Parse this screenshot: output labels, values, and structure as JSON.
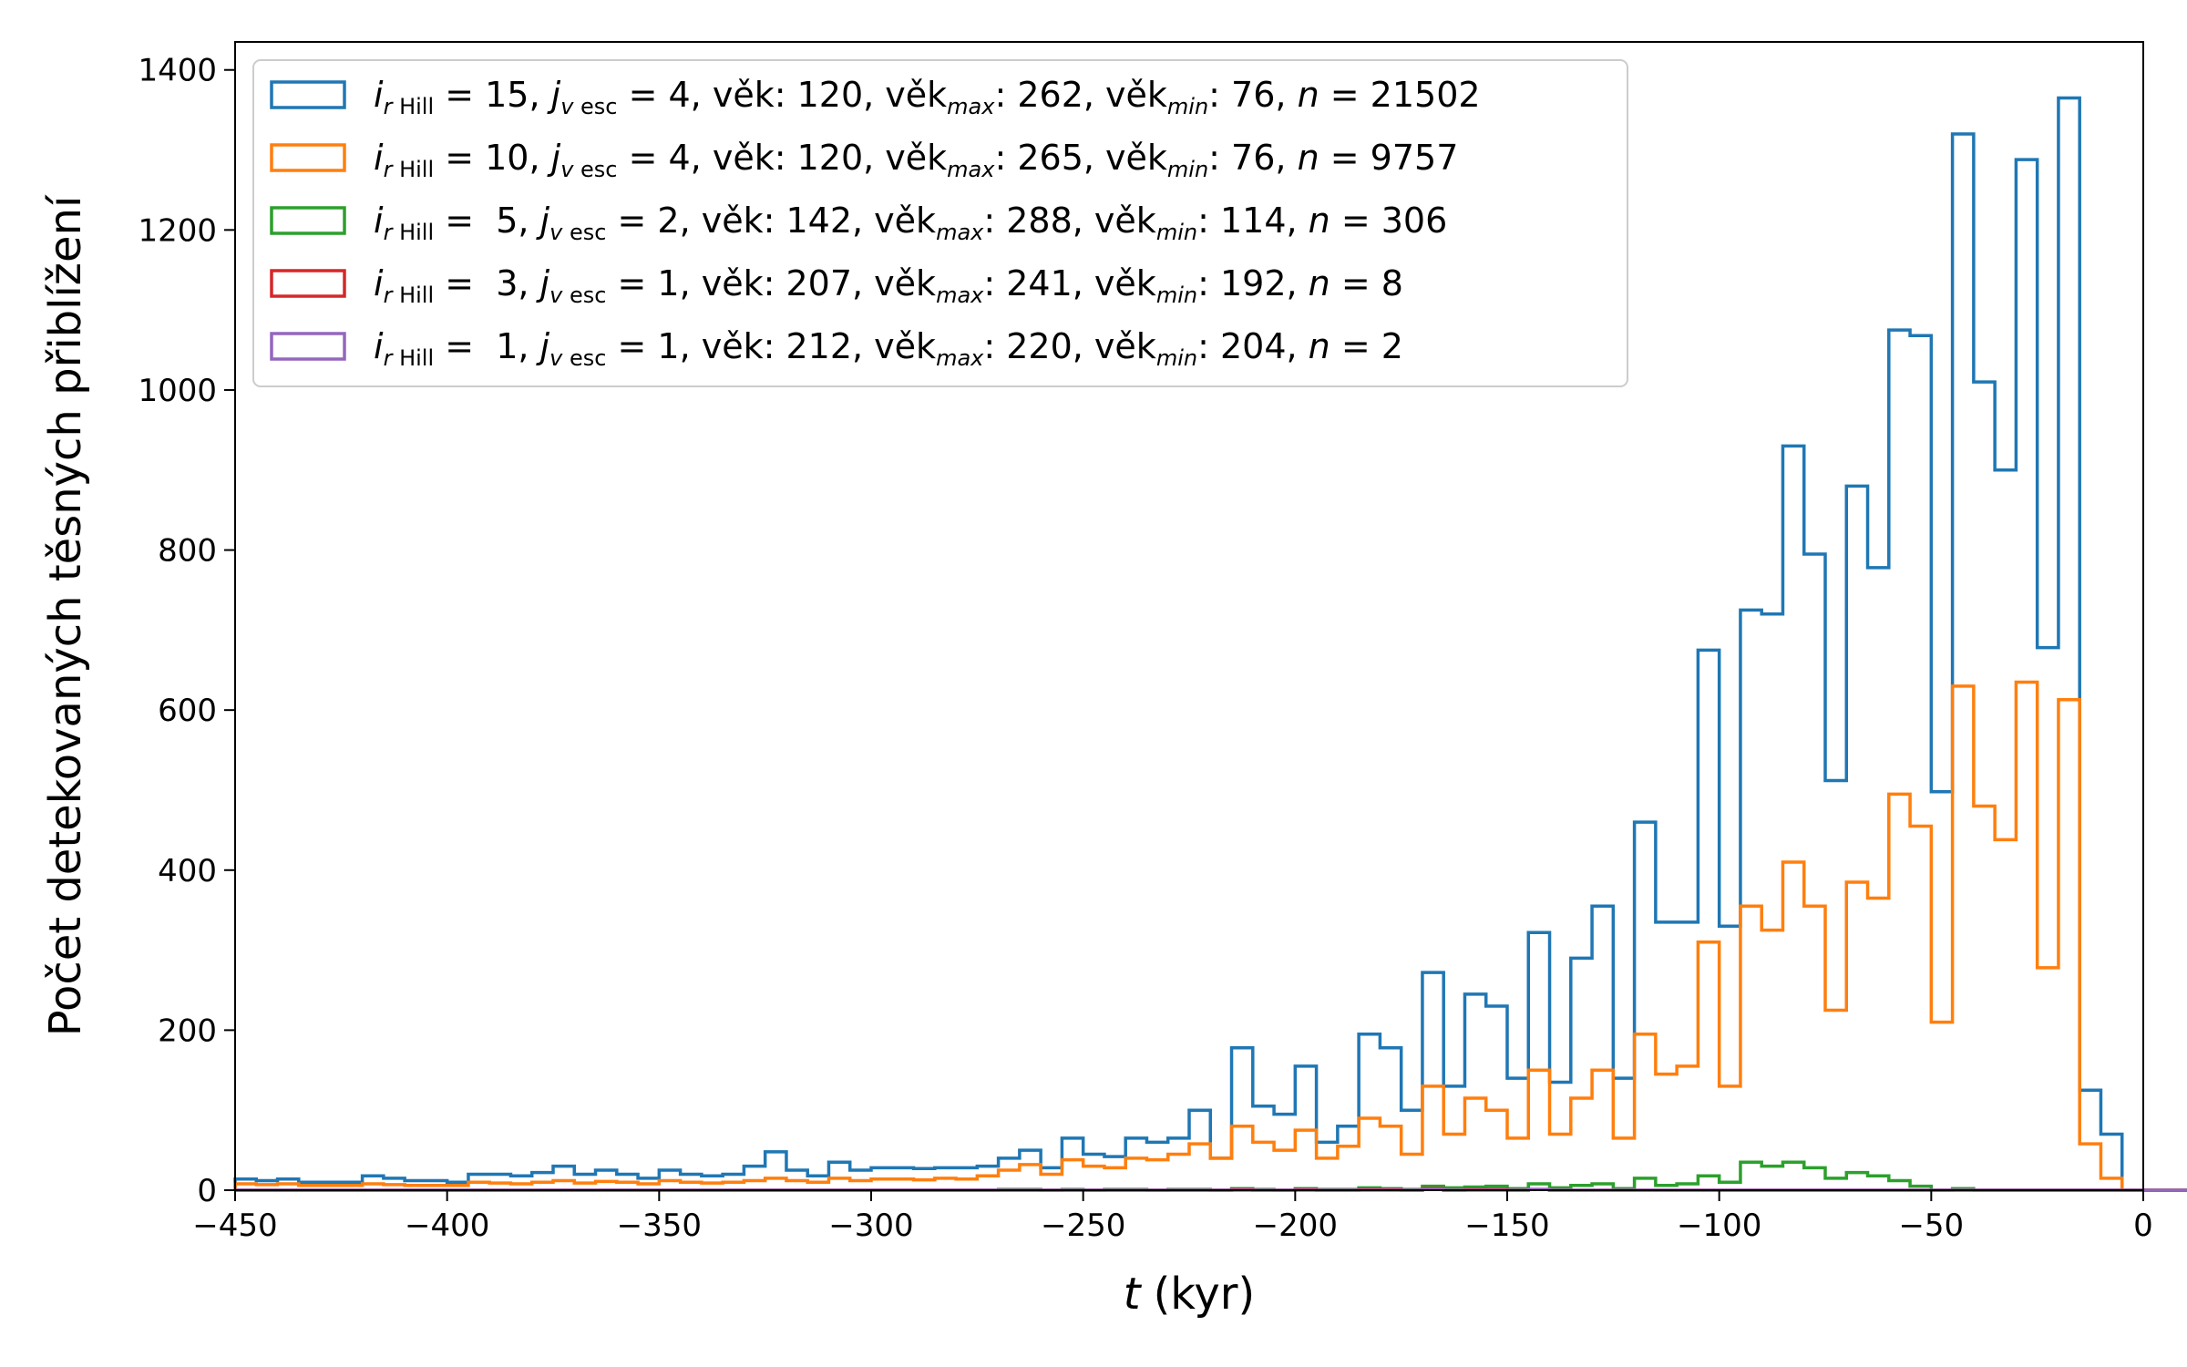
{
  "chart_data": {
    "type": "histogram",
    "xlabel_var": "t",
    "xlabel_unit": "(kyr)",
    "ylabel": "Počet detekovaných těsných přiblížení",
    "xlim": [
      -450,
      0
    ],
    "ylim": [
      0,
      1435
    ],
    "xticks": [
      -450,
      -400,
      -350,
      -300,
      -250,
      -200,
      -150,
      -100,
      -50,
      0
    ],
    "xtick_labels": [
      "−450",
      "−400",
      "−350",
      "−300",
      "−250",
      "−200",
      "−150",
      "−100",
      "−50",
      "0"
    ],
    "yticks": [
      0,
      200,
      400,
      600,
      800,
      1000,
      1200,
      1400
    ],
    "ytick_labels": [
      "0",
      "200",
      "400",
      "600",
      "800",
      "1000",
      "1200",
      "1400"
    ],
    "grid": false,
    "legend_position": "top-left",
    "bin_edges_start": -450,
    "bin_width": 5,
    "series": [
      {
        "color": "#1f77b4",
        "legend": {
          "i": "15",
          "j": "4",
          "age": "120",
          "age_max": "262",
          "age_min": "76",
          "n": "21502"
        },
        "values": [
          14,
          12,
          14,
          10,
          10,
          10,
          18,
          15,
          12,
          12,
          10,
          20,
          20,
          18,
          22,
          30,
          20,
          25,
          20,
          15,
          25,
          20,
          18,
          20,
          30,
          48,
          25,
          18,
          35,
          25,
          28,
          28,
          27,
          28,
          28,
          30,
          40,
          50,
          28,
          65,
          45,
          42,
          65,
          60,
          65,
          100,
          40,
          178,
          105,
          95,
          155,
          60,
          80,
          195,
          178,
          100,
          272,
          130,
          245,
          230,
          140,
          322,
          135,
          290,
          355,
          140,
          460,
          335,
          335,
          675,
          330,
          725,
          720,
          930,
          795,
          512,
          880,
          778,
          1075,
          1068,
          498,
          1320,
          1010,
          900,
          1288,
          678,
          1365,
          125,
          70,
          0,
          0,
          0,
          0,
          0,
          0,
          0,
          0,
          0,
          0,
          0,
          0,
          0,
          0,
          0,
          0,
          0,
          0,
          0,
          0,
          0
        ]
      },
      {
        "color": "#ff7f0e",
        "legend": {
          "i": "10",
          "j": "4",
          "age": "120",
          "age_max": "265",
          "age_min": "76",
          "n": "9757"
        },
        "values": [
          8,
          7,
          8,
          6,
          6,
          6,
          8,
          7,
          6,
          6,
          6,
          10,
          9,
          8,
          10,
          12,
          9,
          11,
          10,
          8,
          12,
          10,
          9,
          10,
          12,
          15,
          12,
          10,
          15,
          12,
          14,
          14,
          13,
          15,
          14,
          18,
          25,
          32,
          20,
          38,
          30,
          28,
          40,
          38,
          45,
          58,
          40,
          80,
          60,
          50,
          75,
          40,
          55,
          90,
          80,
          45,
          130,
          70,
          115,
          100,
          65,
          150,
          70,
          115,
          150,
          65,
          195,
          145,
          155,
          310,
          130,
          355,
          325,
          410,
          355,
          225,
          385,
          365,
          495,
          455,
          210,
          630,
          480,
          438,
          635,
          278,
          613,
          58,
          15,
          0,
          0,
          0,
          0,
          0,
          0,
          0,
          0,
          0,
          0,
          0,
          0,
          0,
          0,
          0,
          0,
          0,
          0,
          0,
          0,
          0
        ]
      },
      {
        "color": "#2ca02c",
        "legend": {
          "i": "5",
          "j": "2",
          "age": "142",
          "age_max": "288",
          "age_min": "114",
          "n": "306"
        },
        "values": [
          0,
          0,
          0,
          0,
          0,
          0,
          0,
          0,
          0,
          0,
          0,
          0,
          0,
          0,
          0,
          0,
          0,
          0,
          0,
          0,
          0,
          0,
          0,
          0,
          0,
          0,
          0,
          0,
          0,
          0,
          0,
          0,
          0,
          0,
          0,
          0,
          1,
          1,
          0,
          1,
          0,
          1,
          1,
          0,
          1,
          1,
          0,
          2,
          1,
          0,
          2,
          1,
          1,
          3,
          2,
          1,
          5,
          3,
          4,
          5,
          2,
          8,
          3,
          6,
          8,
          2,
          15,
          6,
          8,
          18,
          10,
          35,
          30,
          35,
          28,
          15,
          22,
          18,
          12,
          5,
          0,
          2,
          0,
          0,
          0,
          0,
          0,
          0,
          0,
          0,
          0,
          0,
          0,
          0,
          0,
          0,
          0,
          0,
          0,
          0,
          0,
          0,
          0,
          0,
          0,
          0,
          0,
          0,
          0,
          0
        ]
      },
      {
        "color": "#d62728",
        "legend": {
          "i": "3",
          "j": "1",
          "age": "207",
          "age_max": "241",
          "age_min": "192",
          "n": "8"
        },
        "values": [
          0,
          0,
          0,
          0,
          0,
          0,
          0,
          0,
          0,
          0,
          0,
          0,
          0,
          0,
          0,
          0,
          0,
          0,
          0,
          0,
          0,
          0,
          0,
          0,
          0,
          0,
          0,
          0,
          0,
          0,
          0,
          0,
          0,
          0,
          0,
          0,
          0,
          0,
          0,
          0,
          0,
          0,
          0,
          0,
          0,
          0,
          0,
          1,
          0,
          0,
          1,
          0,
          0,
          1,
          1,
          0,
          2,
          0,
          1,
          1,
          0,
          1,
          0,
          0,
          0,
          0,
          0,
          0,
          0,
          0,
          0,
          0,
          0,
          0,
          0,
          0,
          0,
          0,
          0,
          0,
          0,
          0,
          0,
          0,
          0,
          0,
          0,
          0,
          0,
          0,
          0,
          0,
          0,
          0,
          0,
          0,
          0,
          0,
          0,
          0,
          0,
          0,
          0,
          0,
          0,
          0,
          0,
          0,
          0,
          0
        ]
      },
      {
        "color": "#9467bd",
        "legend": {
          "i": "1",
          "j": "1",
          "age": "212",
          "age_max": "220",
          "age_min": "204",
          "n": "2"
        },
        "values": [
          0,
          0,
          0,
          0,
          0,
          0,
          0,
          0,
          0,
          0,
          0,
          0,
          0,
          0,
          0,
          0,
          0,
          0,
          0,
          0,
          0,
          0,
          0,
          0,
          0,
          0,
          0,
          0,
          0,
          0,
          0,
          0,
          0,
          0,
          0,
          0,
          0,
          0,
          0,
          0,
          0,
          0,
          0,
          0,
          0,
          0,
          0,
          0,
          0,
          0,
          0,
          0,
          0,
          0,
          0,
          0,
          1,
          0,
          0,
          0,
          0,
          1,
          0,
          0,
          0,
          0,
          0,
          0,
          0,
          0,
          0,
          0,
          0,
          0,
          0,
          0,
          0,
          0,
          0,
          0,
          0,
          0,
          0,
          0,
          0,
          0,
          0,
          0,
          0,
          0,
          0,
          0,
          0,
          0,
          0,
          0,
          0,
          0,
          0,
          0,
          0,
          0,
          0,
          0,
          0,
          0,
          0,
          0,
          0,
          0
        ]
      }
    ]
  }
}
